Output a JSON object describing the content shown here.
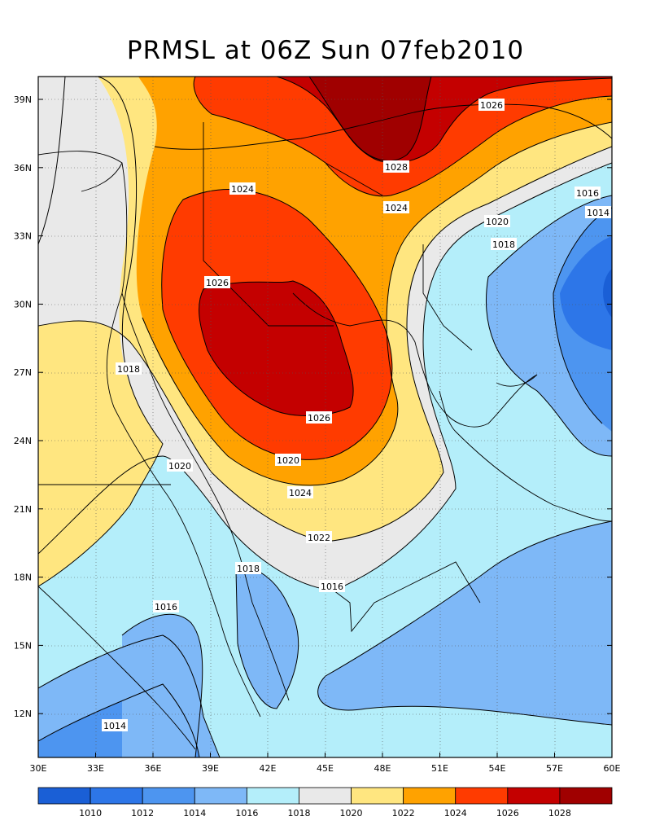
{
  "title": "PRMSL at 06Z Sun 07feb2010",
  "colors": {
    "c1008": "#1a5fd6",
    "c1010": "#2d76e8",
    "c1012": "#4d95f0",
    "c1014": "#7eb8f7",
    "c1016": "#b4eefa",
    "c1018": "#e9e9e9",
    "c1020": "#ffe680",
    "c1022": "#ffa200",
    "c1024": "#ff3b00",
    "c1026": "#c40000",
    "c1028": "#a00000"
  },
  "map": {
    "lon_ticks": [
      "30E",
      "33E",
      "36E",
      "39E",
      "42E",
      "45E",
      "48E",
      "51E",
      "54E",
      "57E",
      "60E"
    ],
    "lat_ticks": [
      "39N",
      "36N",
      "33N",
      "30N",
      "27N",
      "24N",
      "21N",
      "18N",
      "15N",
      "12N"
    ],
    "contour_labels": [
      "1026",
      "1028",
      "1024",
      "1016",
      "1014",
      "1020",
      "1018",
      "1026",
      "1024",
      "1026",
      "1020",
      "1024",
      "1022",
      "1018",
      "1020",
      "1016",
      "1018",
      "1016",
      "1014"
    ]
  },
  "colorbar": {
    "labels": [
      "1010",
      "1012",
      "1014",
      "1016",
      "1018",
      "1020",
      "1022",
      "1024",
      "1026",
      "1028"
    ],
    "colors": [
      "#1a5fd6",
      "#2d76e8",
      "#4d95f0",
      "#7eb8f7",
      "#b4eefa",
      "#e9e9e9",
      "#ffe680",
      "#ffa200",
      "#ff3b00",
      "#c40000",
      "#a00000"
    ]
  }
}
